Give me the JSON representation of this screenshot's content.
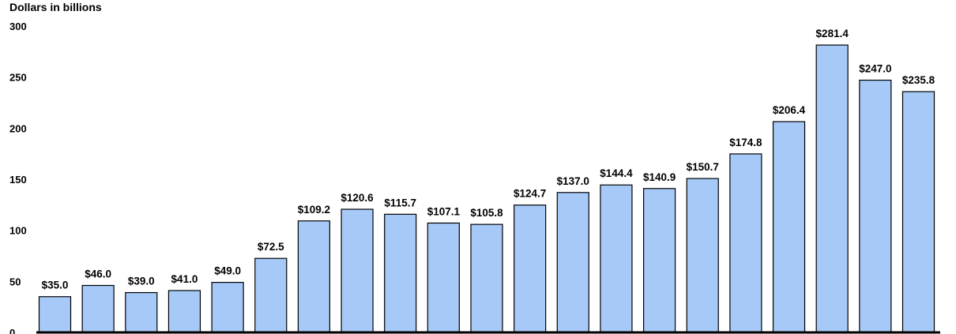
{
  "chart_data": {
    "type": "bar",
    "ylabel": "Dollars in billions",
    "ylim": [
      0,
      300
    ],
    "yticks": [
      0,
      50,
      100,
      150,
      200,
      250,
      300
    ],
    "ytick_labels": [
      "0",
      "50",
      "100",
      "150",
      "200",
      "250",
      "300"
    ],
    "values": [
      35.0,
      46.0,
      39.0,
      41.0,
      49.0,
      72.5,
      109.2,
      120.6,
      115.7,
      107.1,
      105.8,
      124.7,
      137.0,
      144.4,
      140.9,
      150.7,
      174.8,
      206.4,
      281.4,
      247.0,
      235.8
    ],
    "value_labels": [
      "$35.0",
      "$46.0",
      "$39.0",
      "$41.0",
      "$49.0",
      "$72.5",
      "$109.2",
      "$120.6",
      "$115.7",
      "$107.1",
      "$105.8",
      "$124.7",
      "$137.0",
      "$144.4",
      "$140.9",
      "$150.7",
      "$174.8",
      "$206.4",
      "$281.4",
      "$247.0",
      "$235.8"
    ],
    "grid": false,
    "colors": {
      "bar": "#a6c9f8",
      "outline": "#000000"
    }
  }
}
